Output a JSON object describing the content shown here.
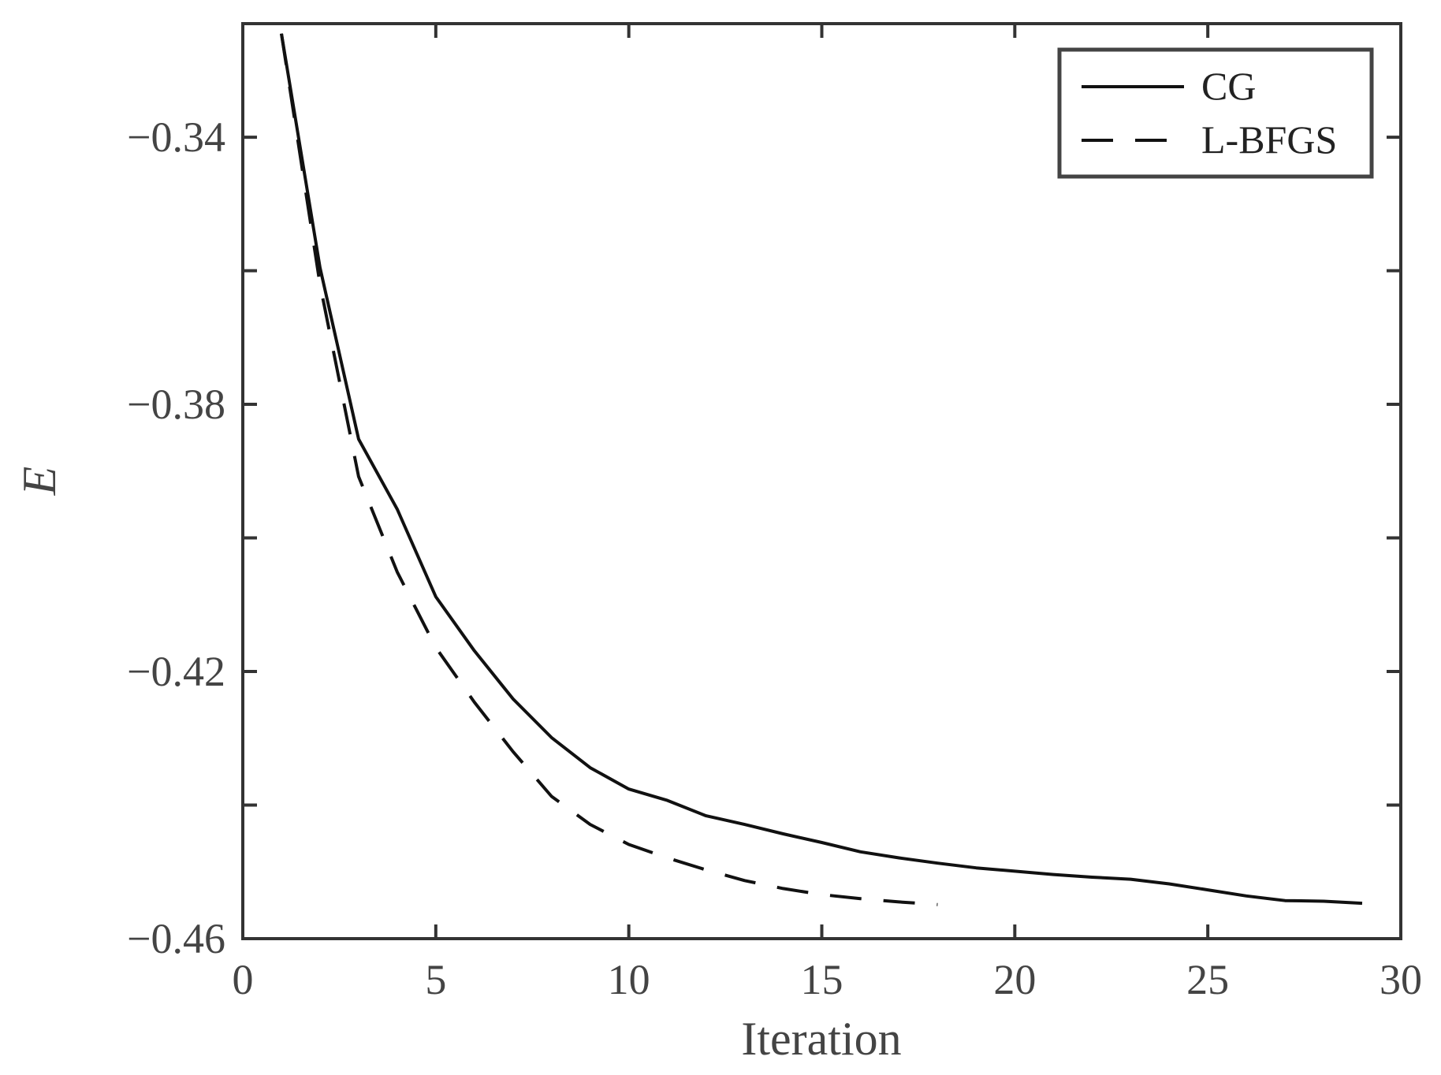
{
  "chart_data": {
    "type": "line",
    "title": "",
    "xlabel": "Iteration",
    "ylabel": "E",
    "xlim": [
      0,
      30
    ],
    "ylim": [
      -0.46,
      -0.323
    ],
    "xticks": [
      0,
      5,
      10,
      15,
      20,
      25,
      30
    ],
    "xtick_labels": [
      "0",
      "5",
      "10",
      "15",
      "20",
      "25",
      "30"
    ],
    "yticks": [
      -0.34,
      -0.38,
      -0.42,
      -0.46
    ],
    "ytick_labels": [
      "−0.34",
      "−0.38",
      "−0.42",
      "−0.46"
    ],
    "yminor_ticks": [
      -0.36,
      -0.4,
      -0.44
    ],
    "grid": false,
    "legend_position": "top-right",
    "series": [
      {
        "name": "CG",
        "style": "solid",
        "color": "#111111",
        "x": [
          1,
          2,
          3,
          4,
          5,
          6,
          7,
          8,
          9,
          10,
          11,
          12,
          13,
          14,
          15,
          16,
          17,
          18,
          19,
          20,
          21,
          22,
          23,
          24,
          25,
          26,
          27,
          28,
          29
        ],
        "y": [
          -0.3245,
          -0.3595,
          -0.3852,
          -0.3957,
          -0.4088,
          -0.4169,
          -0.4241,
          -0.4299,
          -0.4344,
          -0.4376,
          -0.4393,
          -0.4416,
          -0.4429,
          -0.4443,
          -0.4456,
          -0.447,
          -0.4479,
          -0.4487,
          -0.4494,
          -0.4499,
          -0.4504,
          -0.4508,
          -0.4511,
          -0.4518,
          -0.4527,
          -0.4536,
          -0.4543,
          -0.4544,
          -0.4547
        ]
      },
      {
        "name": "L-BFGS",
        "style": "dashed",
        "color": "#111111",
        "x": [
          1,
          2,
          3,
          4,
          5,
          6,
          7,
          8,
          9,
          10,
          11,
          12,
          13,
          14,
          15,
          16,
          17,
          18
        ],
        "y": [
          -0.3245,
          -0.362,
          -0.3908,
          -0.4051,
          -0.4164,
          -0.4246,
          -0.432,
          -0.4387,
          -0.4429,
          -0.4459,
          -0.4479,
          -0.4497,
          -0.4513,
          -0.4525,
          -0.4534,
          -0.454,
          -0.4545,
          -0.4549
        ]
      }
    ]
  }
}
